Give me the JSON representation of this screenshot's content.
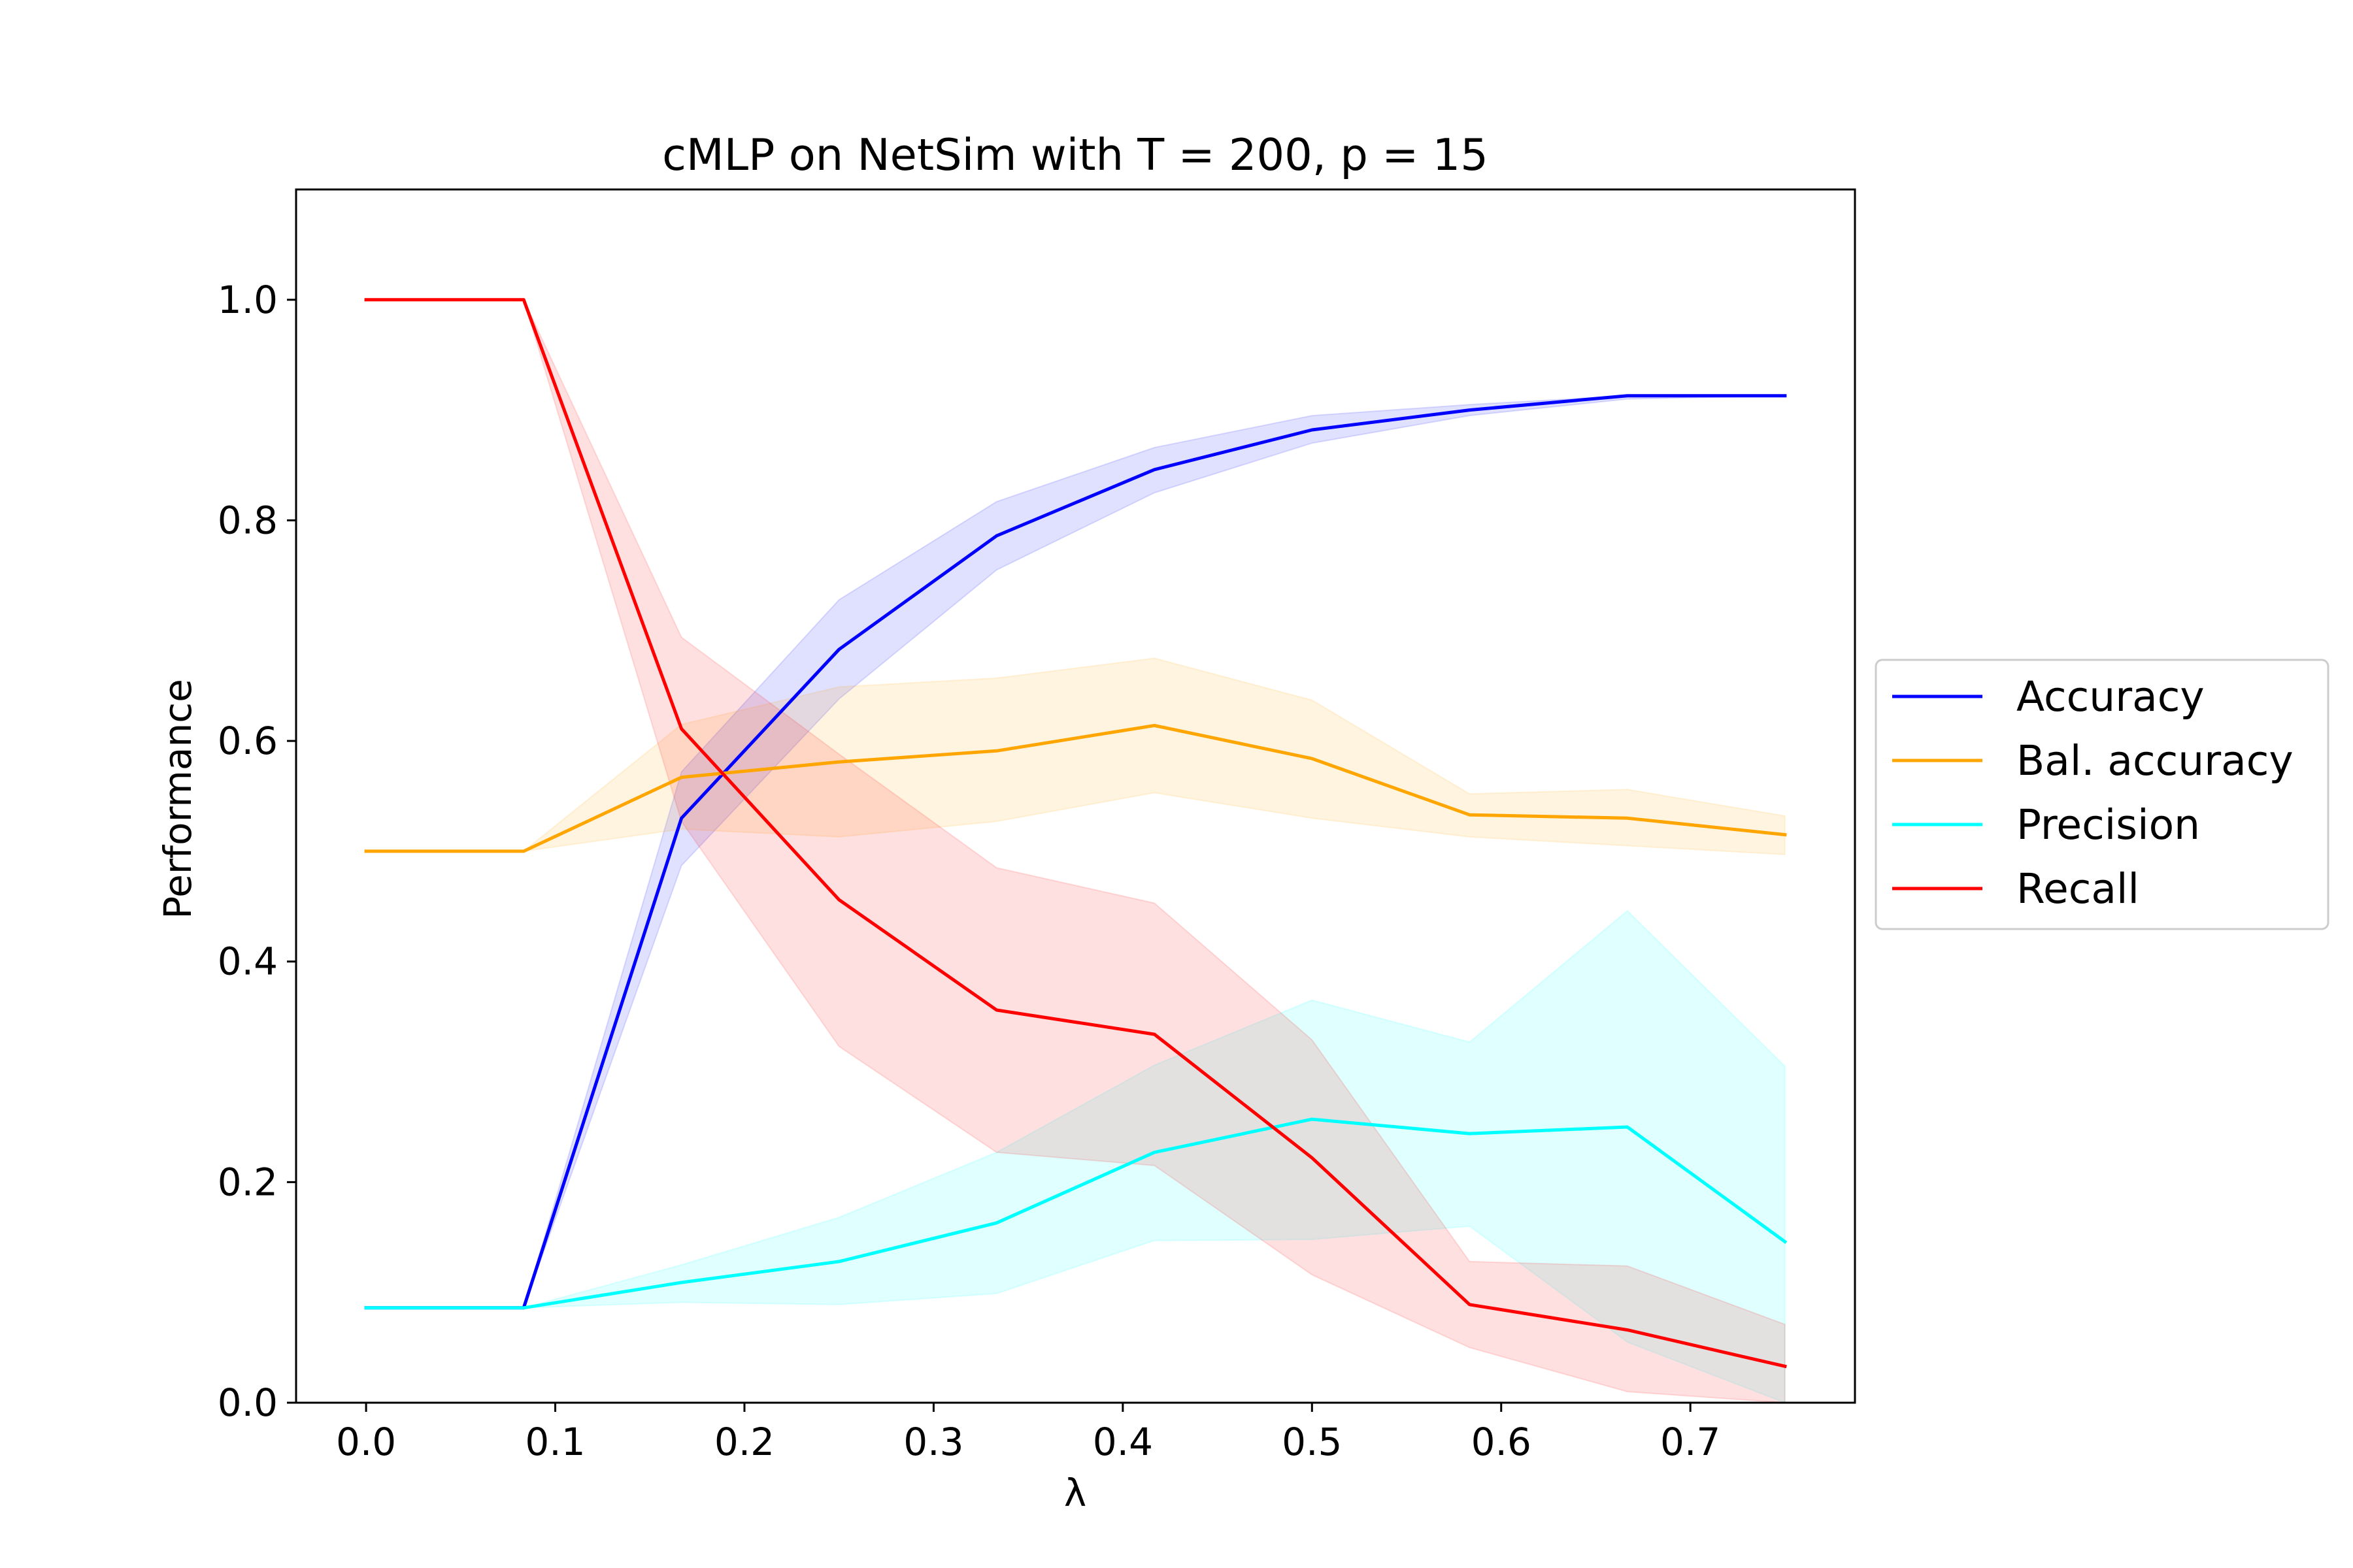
{
  "chart_data": {
    "type": "line",
    "title": "cMLP on NetSim with T = 200, p = 15",
    "xlabel": "λ",
    "ylabel": "Performance",
    "xlim": [
      -0.037,
      0.787
    ],
    "ylim": [
      0.0,
      1.1
    ],
    "xticks": [
      0.0,
      0.1,
      0.2,
      0.3,
      0.4,
      0.5,
      0.6,
      0.7
    ],
    "xtick_labels": [
      "0.0",
      "0.1",
      "0.2",
      "0.3",
      "0.4",
      "0.5",
      "0.6",
      "0.7"
    ],
    "yticks": [
      0.0,
      0.2,
      0.4,
      0.6,
      0.8,
      1.0
    ],
    "ytick_labels": [
      "0.0",
      "0.2",
      "0.4",
      "0.6",
      "0.8",
      "1.0"
    ],
    "grid": false,
    "legend_position": "outside-right",
    "x": [
      0.0,
      0.0833,
      0.1667,
      0.25,
      0.3333,
      0.4167,
      0.5,
      0.5833,
      0.6667,
      0.75
    ],
    "series": [
      {
        "name": "Accuracy",
        "color": "#0000ff",
        "values": [
          0.086,
          0.086,
          0.53,
          0.683,
          0.786,
          0.846,
          0.882,
          0.9,
          0.913,
          0.913
        ],
        "lower": [
          0.086,
          0.086,
          0.487,
          0.638,
          0.755,
          0.825,
          0.87,
          0.895,
          0.91,
          0.913
        ],
        "upper": [
          0.086,
          0.086,
          0.572,
          0.728,
          0.817,
          0.866,
          0.895,
          0.905,
          0.913,
          0.913
        ]
      },
      {
        "name": "Bal. accuracy",
        "color": "#ffa500",
        "values": [
          0.5,
          0.5,
          0.567,
          0.581,
          0.591,
          0.614,
          0.584,
          0.533,
          0.53,
          0.515
        ],
        "lower": [
          0.5,
          0.5,
          0.52,
          0.513,
          0.527,
          0.553,
          0.53,
          0.513,
          0.505,
          0.497
        ],
        "upper": [
          0.5,
          0.5,
          0.615,
          0.649,
          0.657,
          0.675,
          0.637,
          0.552,
          0.556,
          0.532
        ]
      },
      {
        "name": "Precision",
        "color": "#00ffff",
        "values": [
          0.086,
          0.086,
          0.109,
          0.128,
          0.163,
          0.227,
          0.257,
          0.244,
          0.25,
          0.146
        ],
        "lower": [
          0.086,
          0.086,
          0.091,
          0.089,
          0.099,
          0.147,
          0.148,
          0.16,
          0.055,
          0.0
        ],
        "upper": [
          0.086,
          0.086,
          0.125,
          0.168,
          0.227,
          0.306,
          0.365,
          0.327,
          0.446,
          0.305
        ]
      },
      {
        "name": "Recall",
        "color": "#ff0000",
        "values": [
          1.0,
          1.0,
          0.611,
          0.456,
          0.356,
          0.334,
          0.222,
          0.089,
          0.066,
          0.033
        ],
        "lower": [
          1.0,
          1.0,
          0.527,
          0.323,
          0.227,
          0.215,
          0.116,
          0.05,
          0.01,
          0.0
        ],
        "upper": [
          1.0,
          1.0,
          0.694,
          0.588,
          0.485,
          0.453,
          0.329,
          0.128,
          0.124,
          0.071
        ]
      }
    ]
  }
}
